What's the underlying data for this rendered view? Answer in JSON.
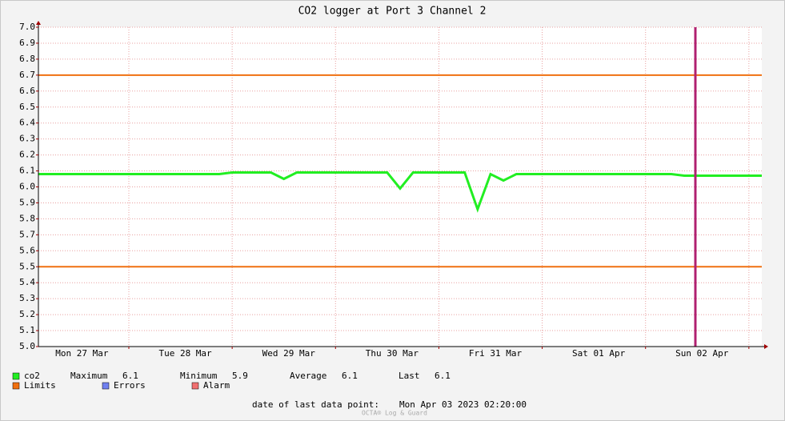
{
  "chart_data": {
    "type": "line",
    "title": "CO2 logger at Port 3 Channel 2",
    "categories": [
      null,
      null,
      null,
      "Mon 27 Mar",
      null,
      null,
      null,
      null,
      null,
      null,
      null,
      "Tue 28 Mar",
      null,
      null,
      null,
      null,
      null,
      null,
      null,
      "Wed 29 Mar",
      null,
      null,
      null,
      null,
      null,
      null,
      null,
      "Thu 30 Mar",
      null,
      null,
      null,
      null,
      null,
      null,
      null,
      "Fri 31 Mar",
      null,
      null,
      null,
      null,
      null,
      null,
      null,
      "Sat 01 Apr",
      null,
      null,
      null,
      null,
      null,
      null,
      null,
      "Sun 02 Apr",
      null,
      null,
      null,
      null,
      null
    ],
    "series": [
      {
        "name": "co2",
        "color": "#22ee22",
        "values": [
          6.08,
          6.08,
          6.08,
          6.08,
          6.08,
          6.08,
          6.08,
          6.08,
          6.08,
          6.08,
          6.08,
          6.08,
          6.08,
          6.08,
          6.08,
          6.09,
          6.09,
          6.09,
          6.09,
          6.05,
          6.09,
          6.09,
          6.09,
          6.09,
          6.09,
          6.09,
          6.09,
          6.09,
          5.99,
          6.09,
          6.09,
          6.09,
          6.09,
          6.09,
          5.86,
          6.08,
          6.04,
          6.08,
          6.08,
          6.08,
          6.08,
          6.08,
          6.08,
          6.08,
          6.08,
          6.08,
          6.08,
          6.08,
          6.08,
          6.08,
          6.07,
          6.07,
          6.07,
          6.07,
          6.07,
          6.07,
          6.07
        ]
      }
    ],
    "limits": {
      "name": "Limits",
      "color": "#f07010",
      "values": [
        6.7,
        5.5
      ]
    },
    "other_legend": [
      {
        "name": "Errors",
        "color": "#7080f0"
      },
      {
        "name": "Alarm",
        "color": "#f07070"
      }
    ],
    "stats": [
      {
        "label": "Maximum",
        "value": 6.1
      },
      {
        "label": "Minimum",
        "value": 5.9
      },
      {
        "label": "Average",
        "value": 6.1
      },
      {
        "label": "Last",
        "value": 6.1
      }
    ],
    "ylim": [
      5,
      7
    ],
    "yticks": [
      {
        "value": 5,
        "label": "5.0"
      },
      5.1,
      5.2,
      5.3,
      5.4,
      5.5,
      5.6,
      5.7,
      5.8,
      5.9,
      {
        "value": 6,
        "label": "6.0"
      },
      6.1,
      6.2,
      6.3,
      6.4,
      6.5,
      6.6,
      6.7,
      6.8,
      6.9,
      {
        "value": 7,
        "label": "7.0"
      }
    ],
    "grid": true,
    "footer_label": "date of last data point:",
    "footer_value": "Mon Apr 03 2023 02:20:00",
    "watermark": "OCTA® Log & Guard"
  }
}
